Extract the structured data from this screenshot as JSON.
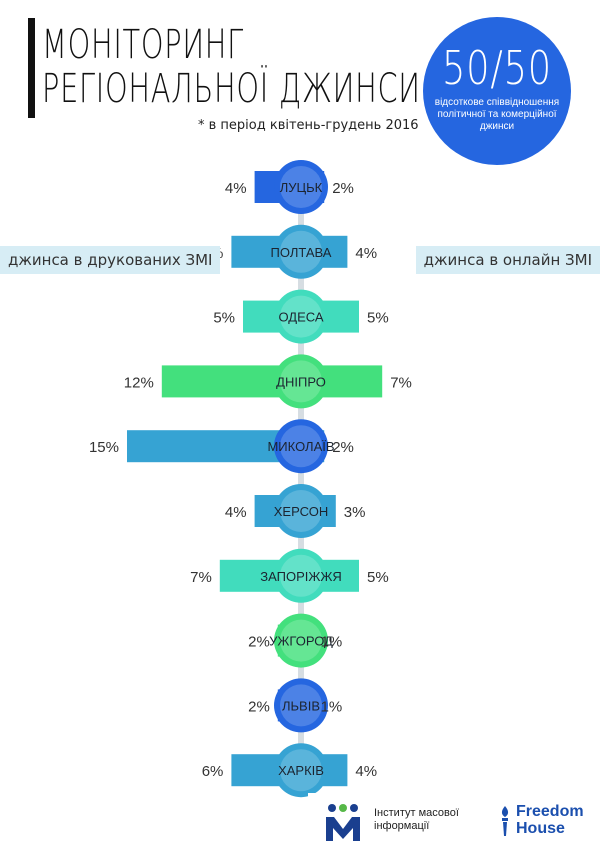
{
  "title_line1": "МОНІТОРИНГ",
  "title_line2": "РЕГІОНАЛЬНОЇ ДЖИНСИ",
  "period_note": "* в період квітень-грудень 2016",
  "ratio": {
    "value": "50/50",
    "caption": "відсоткове співвідношення політичної та комерційної джинси"
  },
  "legend": {
    "left": "джинса в друкованих ЗМІ",
    "right": "джинса в онлайн ЗМІ"
  },
  "logos": {
    "imi_line1": "Інститут масової",
    "imi_line2": "інформації",
    "fh_line1": "Freedom",
    "fh_line2": "House"
  },
  "chart_data": {
    "type": "bar",
    "orientation": "diverging-horizontal",
    "unit": "%",
    "categories": [
      "ЛУЦЬК",
      "ПОЛТАВА",
      "ОДЕСА",
      "ДНІПРО",
      "МИКОЛАЇВ",
      "ХЕРСОН",
      "ЗАПОРІЖЖЯ",
      "УЖГОРОД",
      "ЛЬВІВ",
      "ХАРКІВ"
    ],
    "series": [
      {
        "name": "джинса в друкованих ЗМІ",
        "values": [
          4,
          6,
          5,
          12,
          15,
          4,
          7,
          2,
          2,
          6
        ]
      },
      {
        "name": "джинса в онлайн ЗМІ",
        "values": [
          2,
          4,
          5,
          7,
          2,
          3,
          5,
          1,
          1,
          4
        ]
      }
    ],
    "colors": [
      "#2566e0",
      "#36a3d3",
      "#41dcbd",
      "#43e07d",
      "#36a3d3",
      "#36a3d3",
      "#41dcbd",
      "#43e07d",
      "#2566e0",
      "#36a3d3"
    ],
    "bubble_colors": [
      "#2566e0",
      "#36a3d3",
      "#41dcbd",
      "#43e07d",
      "#2566e0",
      "#36a3d3",
      "#41dcbd",
      "#43e07d",
      "#2566e0",
      "#36a3d3"
    ]
  }
}
